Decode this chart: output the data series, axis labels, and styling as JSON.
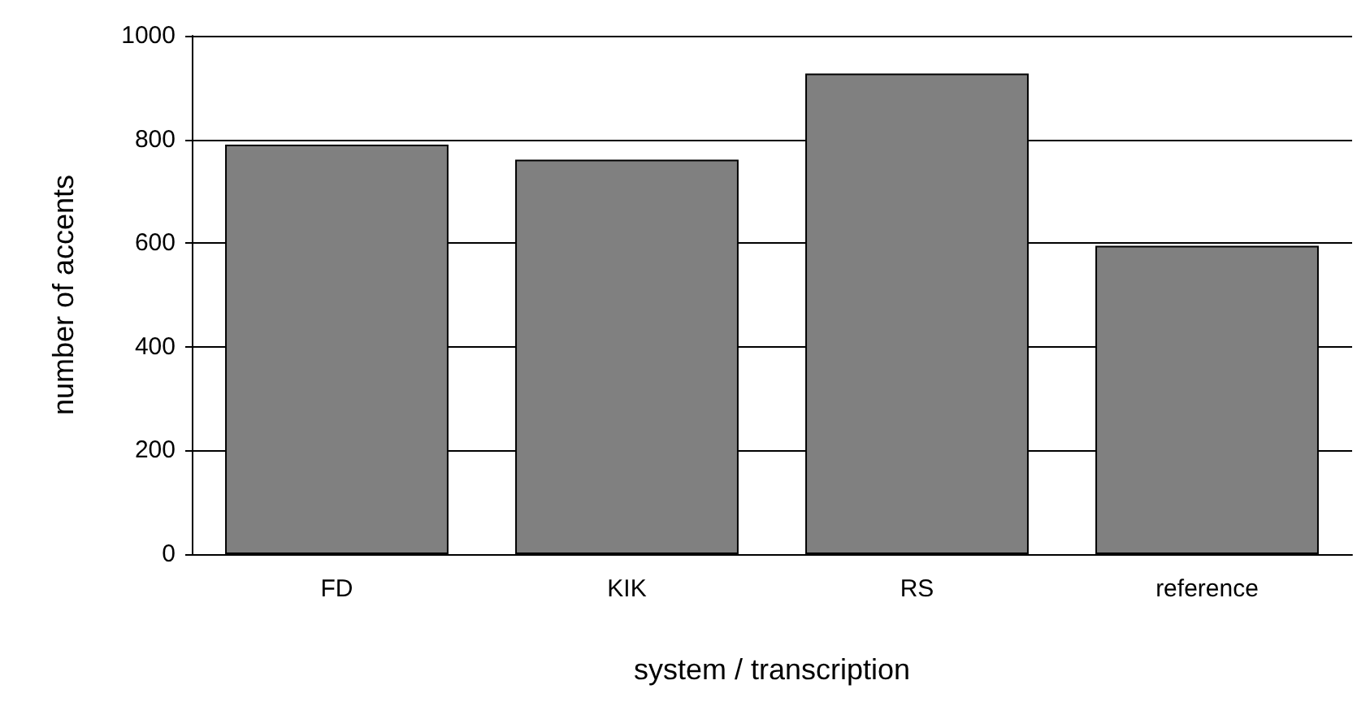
{
  "chart_data": {
    "type": "bar",
    "xlabel": "system / transcription",
    "ylabel": "number of accents",
    "categories": [
      "FD",
      "KIK",
      "RS",
      "reference"
    ],
    "values": [
      790,
      761,
      927,
      595
    ],
    "color": "#808080",
    "ylim": [
      0,
      1000
    ],
    "yticks": [
      0,
      200,
      400,
      600,
      800,
      1000
    ],
    "grid": "y"
  }
}
